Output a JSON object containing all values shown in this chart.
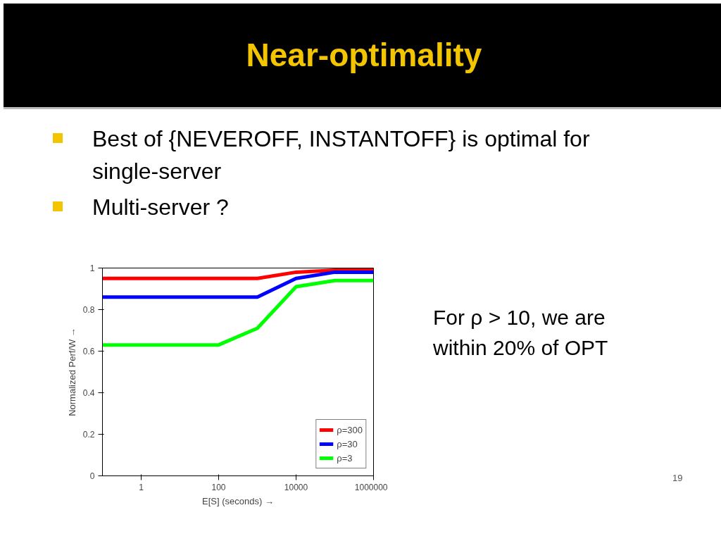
{
  "chart_data": {
    "type": "line",
    "title": "Near-optimality",
    "xlabel": "E[S] (seconds) →",
    "ylabel": "Normalized Perf/W →",
    "x": [
      0.1,
      1000,
      10000,
      100000,
      1000000
    ],
    "series": [
      {
        "name": "ρ=300",
        "color": "#ff0000",
        "values": [
          0.95,
          0.95,
          0.98,
          0.99,
          0.99
        ]
      },
      {
        "name": "ρ=30",
        "color": "#0000ff",
        "values": [
          0.86,
          0.86,
          0.95,
          0.98,
          0.98
        ]
      },
      {
        "name": "ρ=3",
        "color": "#00ff00",
        "x": [
          0.1,
          100,
          1000,
          10000,
          100000,
          1000000
        ],
        "values": [
          0.63,
          0.63,
          0.71,
          0.91,
          0.94,
          0.94
        ]
      }
    ],
    "log": "x",
    "xlim": [
      0.1,
      1000000
    ],
    "xticks": [
      1,
      100,
      10000,
      1000000
    ],
    "ylim": [
      0,
      1
    ],
    "yticks": [
      0,
      0.2,
      0.4,
      0.6,
      0.8,
      1
    ],
    "grid": false,
    "legend": "bottom right",
    "annotations": [
      "Best of {NEVEROFF, INSTANTOFF} is optimal for single-server",
      "Multi-server ?",
      "For ρ > 10, we are within 20% of OPT",
      "19"
    ]
  }
}
